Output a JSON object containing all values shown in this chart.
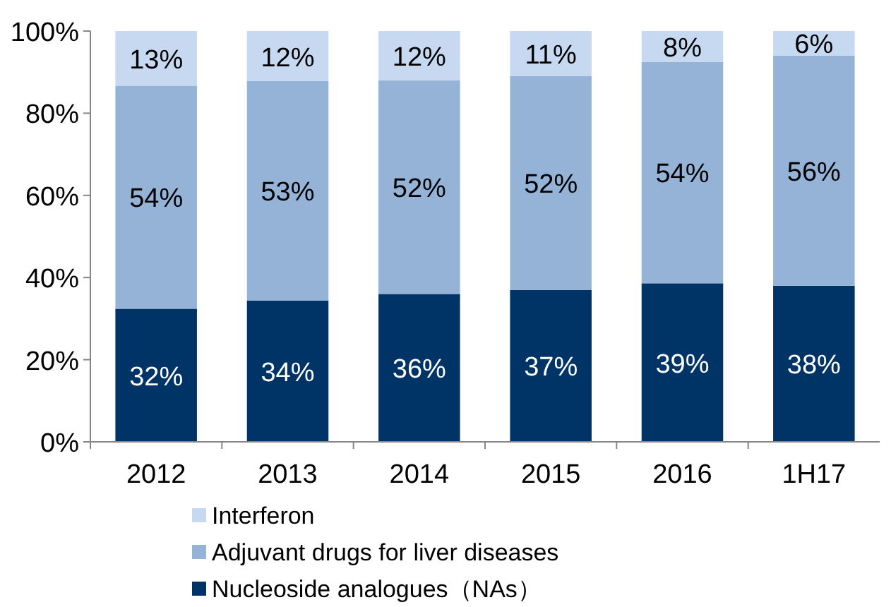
{
  "chart_data": {
    "type": "bar",
    "stacked": true,
    "categories": [
      "2012",
      "2013",
      "2014",
      "2015",
      "2016",
      "1H17"
    ],
    "series": [
      {
        "name": "Nucleoside analogues（NAs）",
        "color": "#003366",
        "values": [
          32.4,
          34.4,
          36,
          37,
          38.6,
          38
        ]
      },
      {
        "name": "Adjuvant drugs for liver diseases",
        "color": "#95b3d7",
        "values": [
          54.3,
          53.4,
          52,
          52,
          53.9,
          56
        ]
      },
      {
        "name": "Interferon",
        "color": "#c6d9f1",
        "values": [
          13.3,
          12.2,
          12,
          11,
          7.5,
          6
        ]
      }
    ],
    "ylim": [
      0,
      100
    ],
    "yticks": [
      {
        "value": 0,
        "label": "0%"
      },
      {
        "value": 20,
        "label": "20%"
      },
      {
        "value": 40,
        "label": "40%"
      },
      {
        "value": 60,
        "label": "60%"
      },
      {
        "value": 80,
        "label": "80%"
      },
      {
        "value": 100,
        "label": "100%"
      }
    ],
    "value_labels": [
      [
        "32%",
        "34%",
        "36%",
        "37%",
        "39%",
        "38%"
      ],
      [
        "54%",
        "53%",
        "52%",
        "52%",
        "54%",
        "56%"
      ],
      [
        "13%",
        "12%",
        "12%",
        "11%",
        "8%",
        "6%"
      ]
    ],
    "legend": "bottom",
    "grid": false
  }
}
